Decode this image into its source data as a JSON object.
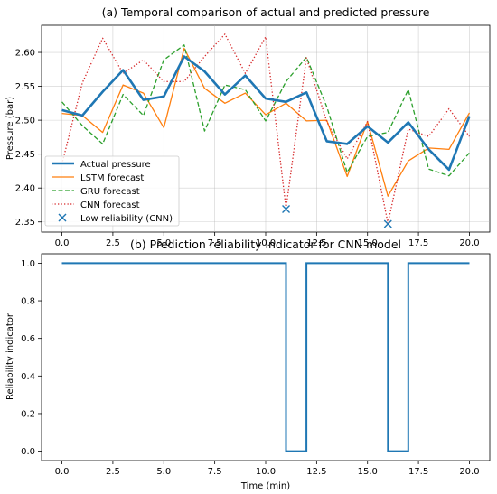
{
  "chart_data": [
    {
      "type": "line",
      "title": "(a) Temporal comparison of actual and predicted pressure",
      "xlabel": "",
      "ylabel": "Pressure (bar)",
      "xlim": [
        -1.0,
        21.0
      ],
      "ylim": [
        2.335,
        2.64
      ],
      "xticks": [
        0,
        2.5,
        5,
        7.5,
        10,
        12.5,
        15,
        17.5,
        20
      ],
      "xtick_labels": [
        "0.0",
        "2.5",
        "5.0",
        "7.5",
        "10.0",
        "12.5",
        "15.0",
        "17.5",
        "20.0"
      ],
      "yticks": [
        2.35,
        2.4,
        2.45,
        2.5,
        2.55,
        2.6
      ],
      "ytick_labels": [
        "2.35",
        "2.40",
        "2.45",
        "2.50",
        "2.55",
        "2.60"
      ],
      "grid": true,
      "legend_position": "lower-left",
      "x": [
        0,
        1,
        2,
        3,
        4,
        5,
        6,
        7,
        8,
        9,
        10,
        11,
        12,
        13,
        14,
        15,
        16,
        17,
        18,
        19,
        20
      ],
      "series": [
        {
          "name": "Actual pressure",
          "color": "#1f77b4",
          "style": "solid-thick",
          "values": [
            2.515,
            2.507,
            2.542,
            2.574,
            2.53,
            2.535,
            2.594,
            2.572,
            2.538,
            2.566,
            2.532,
            2.527,
            2.541,
            2.469,
            2.465,
            2.491,
            2.467,
            2.497,
            2.457,
            2.427,
            2.506
          ]
        },
        {
          "name": "LSTM forecast",
          "color": "#ff7f0e",
          "style": "solid",
          "values": [
            2.51,
            2.507,
            2.482,
            2.552,
            2.54,
            2.489,
            2.606,
            2.547,
            2.525,
            2.54,
            2.508,
            2.525,
            2.499,
            2.5,
            2.417,
            2.498,
            2.388,
            2.44,
            2.459,
            2.457,
            2.511
          ]
        },
        {
          "name": "GRU forecast",
          "color": "#2ca02c",
          "style": "dashed",
          "values": [
            2.527,
            2.492,
            2.465,
            2.538,
            2.507,
            2.589,
            2.611,
            2.484,
            2.552,
            2.545,
            2.499,
            2.557,
            2.593,
            2.52,
            2.423,
            2.476,
            2.482,
            2.545,
            2.428,
            2.418,
            2.452
          ]
        },
        {
          "name": "CNN forecast",
          "color": "#d62728",
          "style": "dotted",
          "values": [
            2.435,
            2.555,
            2.621,
            2.569,
            2.589,
            2.557,
            2.557,
            2.594,
            2.627,
            2.569,
            2.623,
            2.37,
            2.592,
            2.498,
            2.443,
            2.498,
            2.348,
            2.487,
            2.476,
            2.517,
            2.476
          ]
        }
      ],
      "markers": {
        "name": "Low reliability (CNN)",
        "color": "#1f77b4",
        "symbol": "x",
        "points": [
          {
            "x": 11,
            "y": 2.369
          },
          {
            "x": 16,
            "y": 2.347
          }
        ]
      }
    },
    {
      "type": "line",
      "title": "(b) Prediction reliability indicator for CNN model",
      "xlabel": "Time (min)",
      "ylabel": "Reliability indicator",
      "xlim": [
        -1.0,
        21.0
      ],
      "ylim": [
        -0.05,
        1.05
      ],
      "xticks": [
        0,
        2.5,
        5,
        7.5,
        10,
        12.5,
        15,
        17.5,
        20
      ],
      "xtick_labels": [
        "0.0",
        "2.5",
        "5.0",
        "7.5",
        "10.0",
        "12.5",
        "15.0",
        "17.5",
        "20.0"
      ],
      "yticks": [
        0,
        0.2,
        0.4,
        0.6,
        0.8,
        1.0
      ],
      "ytick_labels": [
        "0.0",
        "0.2",
        "0.4",
        "0.6",
        "0.8",
        "1.0"
      ],
      "grid": false,
      "step": "post",
      "series": [
        {
          "color": "#1f77b4",
          "style": "solid-step",
          "x": [
            0,
            1,
            2,
            3,
            4,
            5,
            6,
            7,
            8,
            9,
            10,
            11,
            12,
            13,
            14,
            15,
            16,
            17,
            18,
            19,
            20
          ],
          "values": [
            1,
            1,
            1,
            1,
            1,
            1,
            1,
            1,
            1,
            1,
            1,
            0,
            1,
            1,
            1,
            1,
            0,
            1,
            1,
            1,
            1
          ]
        }
      ]
    }
  ]
}
